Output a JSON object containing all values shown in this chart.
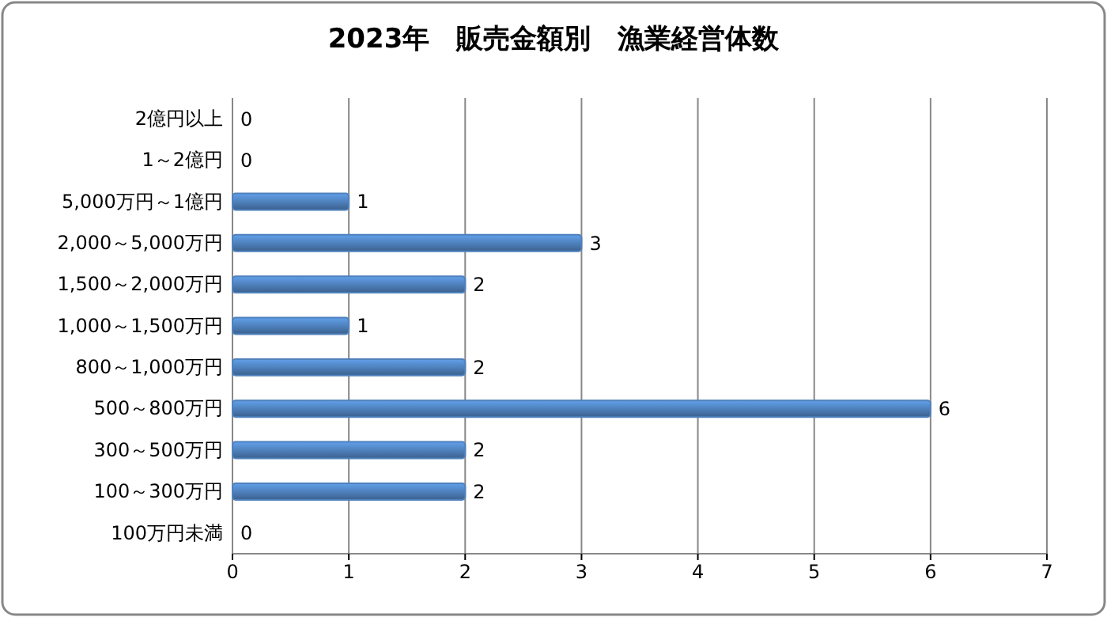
{
  "chart_data": {
    "type": "bar",
    "orientation": "horizontal",
    "title": "2023年　販売金額別　漁業経営体数",
    "categories": [
      "2億円以上",
      "1～2億円",
      "5,000万円～1億円",
      "2,000～5,000万円",
      "1,500～2,000万円",
      "1,000～1,500万円",
      "800～1,000万円",
      "500～800万円",
      "300～500万円",
      "100～300万円",
      "100万円未満"
    ],
    "values": [
      0,
      0,
      1,
      3,
      2,
      1,
      2,
      6,
      2,
      2,
      0
    ],
    "color": "#4f81bd",
    "xlim": [
      0,
      7
    ],
    "xticks": [
      0,
      1,
      2,
      3,
      4,
      5,
      6,
      7
    ],
    "grid": "x",
    "data_labels": true
  }
}
